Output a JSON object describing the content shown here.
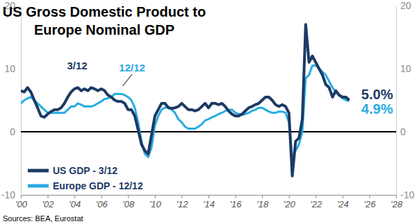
{
  "chart_data": {
    "type": "line",
    "title": [
      "US Gross Domestic Product to",
      "Europe Nominal GDP"
    ],
    "source": "Sources: BEA, Eurostat",
    "annotations": [
      "3/12",
      "12/12",
      "5.0%",
      "4.9%"
    ],
    "legend": "lower left",
    "grid": false,
    "x": [
      2000,
      2000.25,
      2000.5,
      2000.75,
      2001,
      2001.25,
      2001.5,
      2001.75,
      2002,
      2002.25,
      2002.5,
      2002.75,
      2003,
      2003.25,
      2003.5,
      2003.75,
      2004,
      2004.25,
      2004.5,
      2004.75,
      2005,
      2005.25,
      2005.5,
      2005.75,
      2006,
      2006.25,
      2006.5,
      2006.75,
      2007,
      2007.25,
      2007.5,
      2007.75,
      2008,
      2008.25,
      2008.5,
      2008.75,
      2009,
      2009.25,
      2009.5,
      2009.75,
      2010,
      2010.25,
      2010.5,
      2010.75,
      2011,
      2011.25,
      2011.5,
      2011.75,
      2012,
      2012.25,
      2012.5,
      2012.75,
      2013,
      2013.25,
      2013.5,
      2013.75,
      2014,
      2014.25,
      2014.5,
      2014.75,
      2015,
      2015.25,
      2015.5,
      2015.75,
      2016,
      2016.25,
      2016.5,
      2016.75,
      2017,
      2017.25,
      2017.5,
      2017.75,
      2018,
      2018.25,
      2018.5,
      2018.75,
      2019,
      2019.25,
      2019.5,
      2019.75,
      2020,
      2020.25,
      2020.5,
      2020.75,
      2021,
      2021.25,
      2021.5,
      2021.75,
      2022,
      2022.25,
      2022.5,
      2022.75,
      2023,
      2023.25,
      2023.5,
      2023.75,
      2024,
      2024.25,
      2024.5
    ],
    "series": [
      {
        "name": "US GDP - 3/12",
        "color": "#1c3a64",
        "values": [
          6.5,
          6.3,
          7.0,
          6.3,
          5.0,
          3.8,
          2.5,
          2.3,
          2.8,
          3.2,
          3.5,
          3.5,
          3.8,
          4.5,
          5.5,
          6.3,
          6.8,
          7.0,
          6.5,
          6.8,
          6.5,
          7.0,
          6.8,
          6.5,
          6.8,
          6.5,
          5.8,
          5.5,
          5.0,
          4.8,
          4.8,
          4.5,
          3.5,
          3.5,
          2.5,
          0.3,
          -2.0,
          -3.0,
          -3.5,
          -0.5,
          2.5,
          3.5,
          4.5,
          4.5,
          3.8,
          3.7,
          3.8,
          4.0,
          4.5,
          4.0,
          3.5,
          3.5,
          3.3,
          3.5,
          4.0,
          4.5,
          3.8,
          4.5,
          4.5,
          4.3,
          4.5,
          4.0,
          3.3,
          2.8,
          2.5,
          2.5,
          2.8,
          3.3,
          3.8,
          4.0,
          4.3,
          4.5,
          5.0,
          5.5,
          5.5,
          5.0,
          4.3,
          4.0,
          4.3,
          4.0,
          3.0,
          -7.0,
          -1.5,
          -1.0,
          2.0,
          17.0,
          11.0,
          12.0,
          11.0,
          10.0,
          9.0,
          7.5,
          7.0,
          5.5,
          6.5,
          5.8,
          5.5,
          5.5,
          5.0
        ]
      },
      {
        "name": "Europe GDP - 12/12",
        "color": "#29abe2",
        "values": [
          4.5,
          5.0,
          5.3,
          5.5,
          5.0,
          4.5,
          4.0,
          3.5,
          3.0,
          3.0,
          3.0,
          3.0,
          3.0,
          3.0,
          3.5,
          4.0,
          4.0,
          4.5,
          4.3,
          4.0,
          4.0,
          4.0,
          4.2,
          4.5,
          4.8,
          5.2,
          5.3,
          5.5,
          6.0,
          6.0,
          6.0,
          5.8,
          5.5,
          5.0,
          3.8,
          1.5,
          -1.5,
          -3.5,
          -4.0,
          -2.5,
          1.0,
          2.5,
          3.5,
          3.8,
          4.0,
          3.5,
          3.0,
          2.0,
          1.5,
          0.8,
          0.5,
          0.5,
          0.5,
          0.8,
          1.2,
          1.8,
          2.0,
          2.3,
          2.5,
          2.8,
          3.0,
          3.3,
          3.5,
          3.5,
          3.0,
          2.8,
          2.7,
          2.8,
          3.0,
          3.3,
          3.5,
          3.8,
          3.8,
          3.5,
          3.2,
          3.0,
          3.0,
          3.2,
          3.2,
          3.0,
          1.5,
          -4.0,
          -3.0,
          -2.0,
          0.0,
          8.5,
          9.0,
          10.5,
          10.5,
          10.0,
          9.5,
          9.0,
          8.0,
          7.0,
          6.3,
          5.8,
          5.3,
          5.0,
          4.9
        ]
      }
    ],
    "xlim": [
      2000,
      2028
    ],
    "xticks": [
      {
        "value": 2000,
        "label": "'00"
      },
      {
        "value": 2002,
        "label": "'02"
      },
      {
        "value": 2004,
        "label": "'04"
      },
      {
        "value": 2006,
        "label": "'06"
      },
      {
        "value": 2008,
        "label": "'08"
      },
      {
        "value": 2010,
        "label": "'10"
      },
      {
        "value": 2012,
        "label": "'12"
      },
      {
        "value": 2014,
        "label": "'14"
      },
      {
        "value": 2016,
        "label": "'16"
      },
      {
        "value": 2018,
        "label": "'18"
      },
      {
        "value": 2020,
        "label": "'20"
      },
      {
        "value": 2022,
        "label": "'22"
      },
      {
        "value": 2024,
        "label": "'24"
      },
      {
        "value": 2026,
        "label": "'26"
      },
      {
        "value": 2028,
        "label": "'28"
      }
    ],
    "ylim": [
      -10,
      20
    ],
    "yticks": [
      -10,
      0,
      10,
      20
    ]
  }
}
